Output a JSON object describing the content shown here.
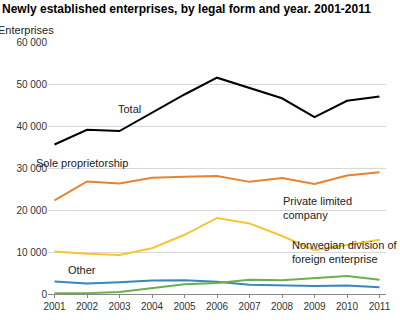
{
  "chart_data": {
    "type": "line",
    "title": "Newly established enterprises, by legal form and year. 2001-2011",
    "y_label": "Enterprises",
    "categories": [
      "2001",
      "2002",
      "2003",
      "2004",
      "2005",
      "2006",
      "2007",
      "2008",
      "2009",
      "2010",
      "2011"
    ],
    "series": [
      {
        "name": "Total",
        "color": "#000000",
        "values": [
          35600,
          39100,
          38800,
          43100,
          47500,
          51500,
          49000,
          46600,
          42100,
          46000,
          47000
        ]
      },
      {
        "name": "Sole proprietorship",
        "color": "#e8822e",
        "values": [
          22300,
          26800,
          26300,
          27700,
          27900,
          28100,
          26700,
          27600,
          26200,
          28200,
          29000
        ]
      },
      {
        "name": "Private limited company",
        "color": "#f5c633",
        "values": [
          10100,
          9600,
          9300,
          10900,
          14100,
          18100,
          16800,
          13800,
          10400,
          11700,
          12900
        ]
      },
      {
        "name": "Other",
        "color": "#3a86c0",
        "values": [
          3000,
          2500,
          2800,
          3200,
          3300,
          2900,
          2200,
          2000,
          1900,
          2000,
          1600
        ]
      },
      {
        "name": "Norwegian division of foreign enterprise",
        "color": "#6ab04c",
        "values": [
          200,
          200,
          500,
          1400,
          2300,
          2600,
          3400,
          3300,
          3800,
          4300,
          3400
        ]
      }
    ],
    "ylim": [
      0,
      60000
    ],
    "yticks": [
      0,
      {
        "value": 10000,
        "label": "10 000"
      },
      {
        "value": 20000,
        "label": "20 000"
      },
      {
        "value": 30000,
        "label": "30 000"
      },
      {
        "value": 40000,
        "label": "40 000"
      },
      {
        "value": 50000,
        "label": "50 000"
      },
      {
        "value": 60000,
        "label": "60 000"
      }
    ],
    "grid": true
  }
}
